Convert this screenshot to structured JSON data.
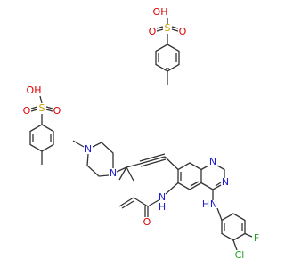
{
  "atoms": [
    "OH",
    "S",
    "O",
    "O",
    "OH",
    "S",
    "O",
    "O",
    "N",
    "N",
    "N",
    "N",
    "N",
    "H",
    "O",
    "N",
    "H",
    "Cl",
    "F"
  ]
}
